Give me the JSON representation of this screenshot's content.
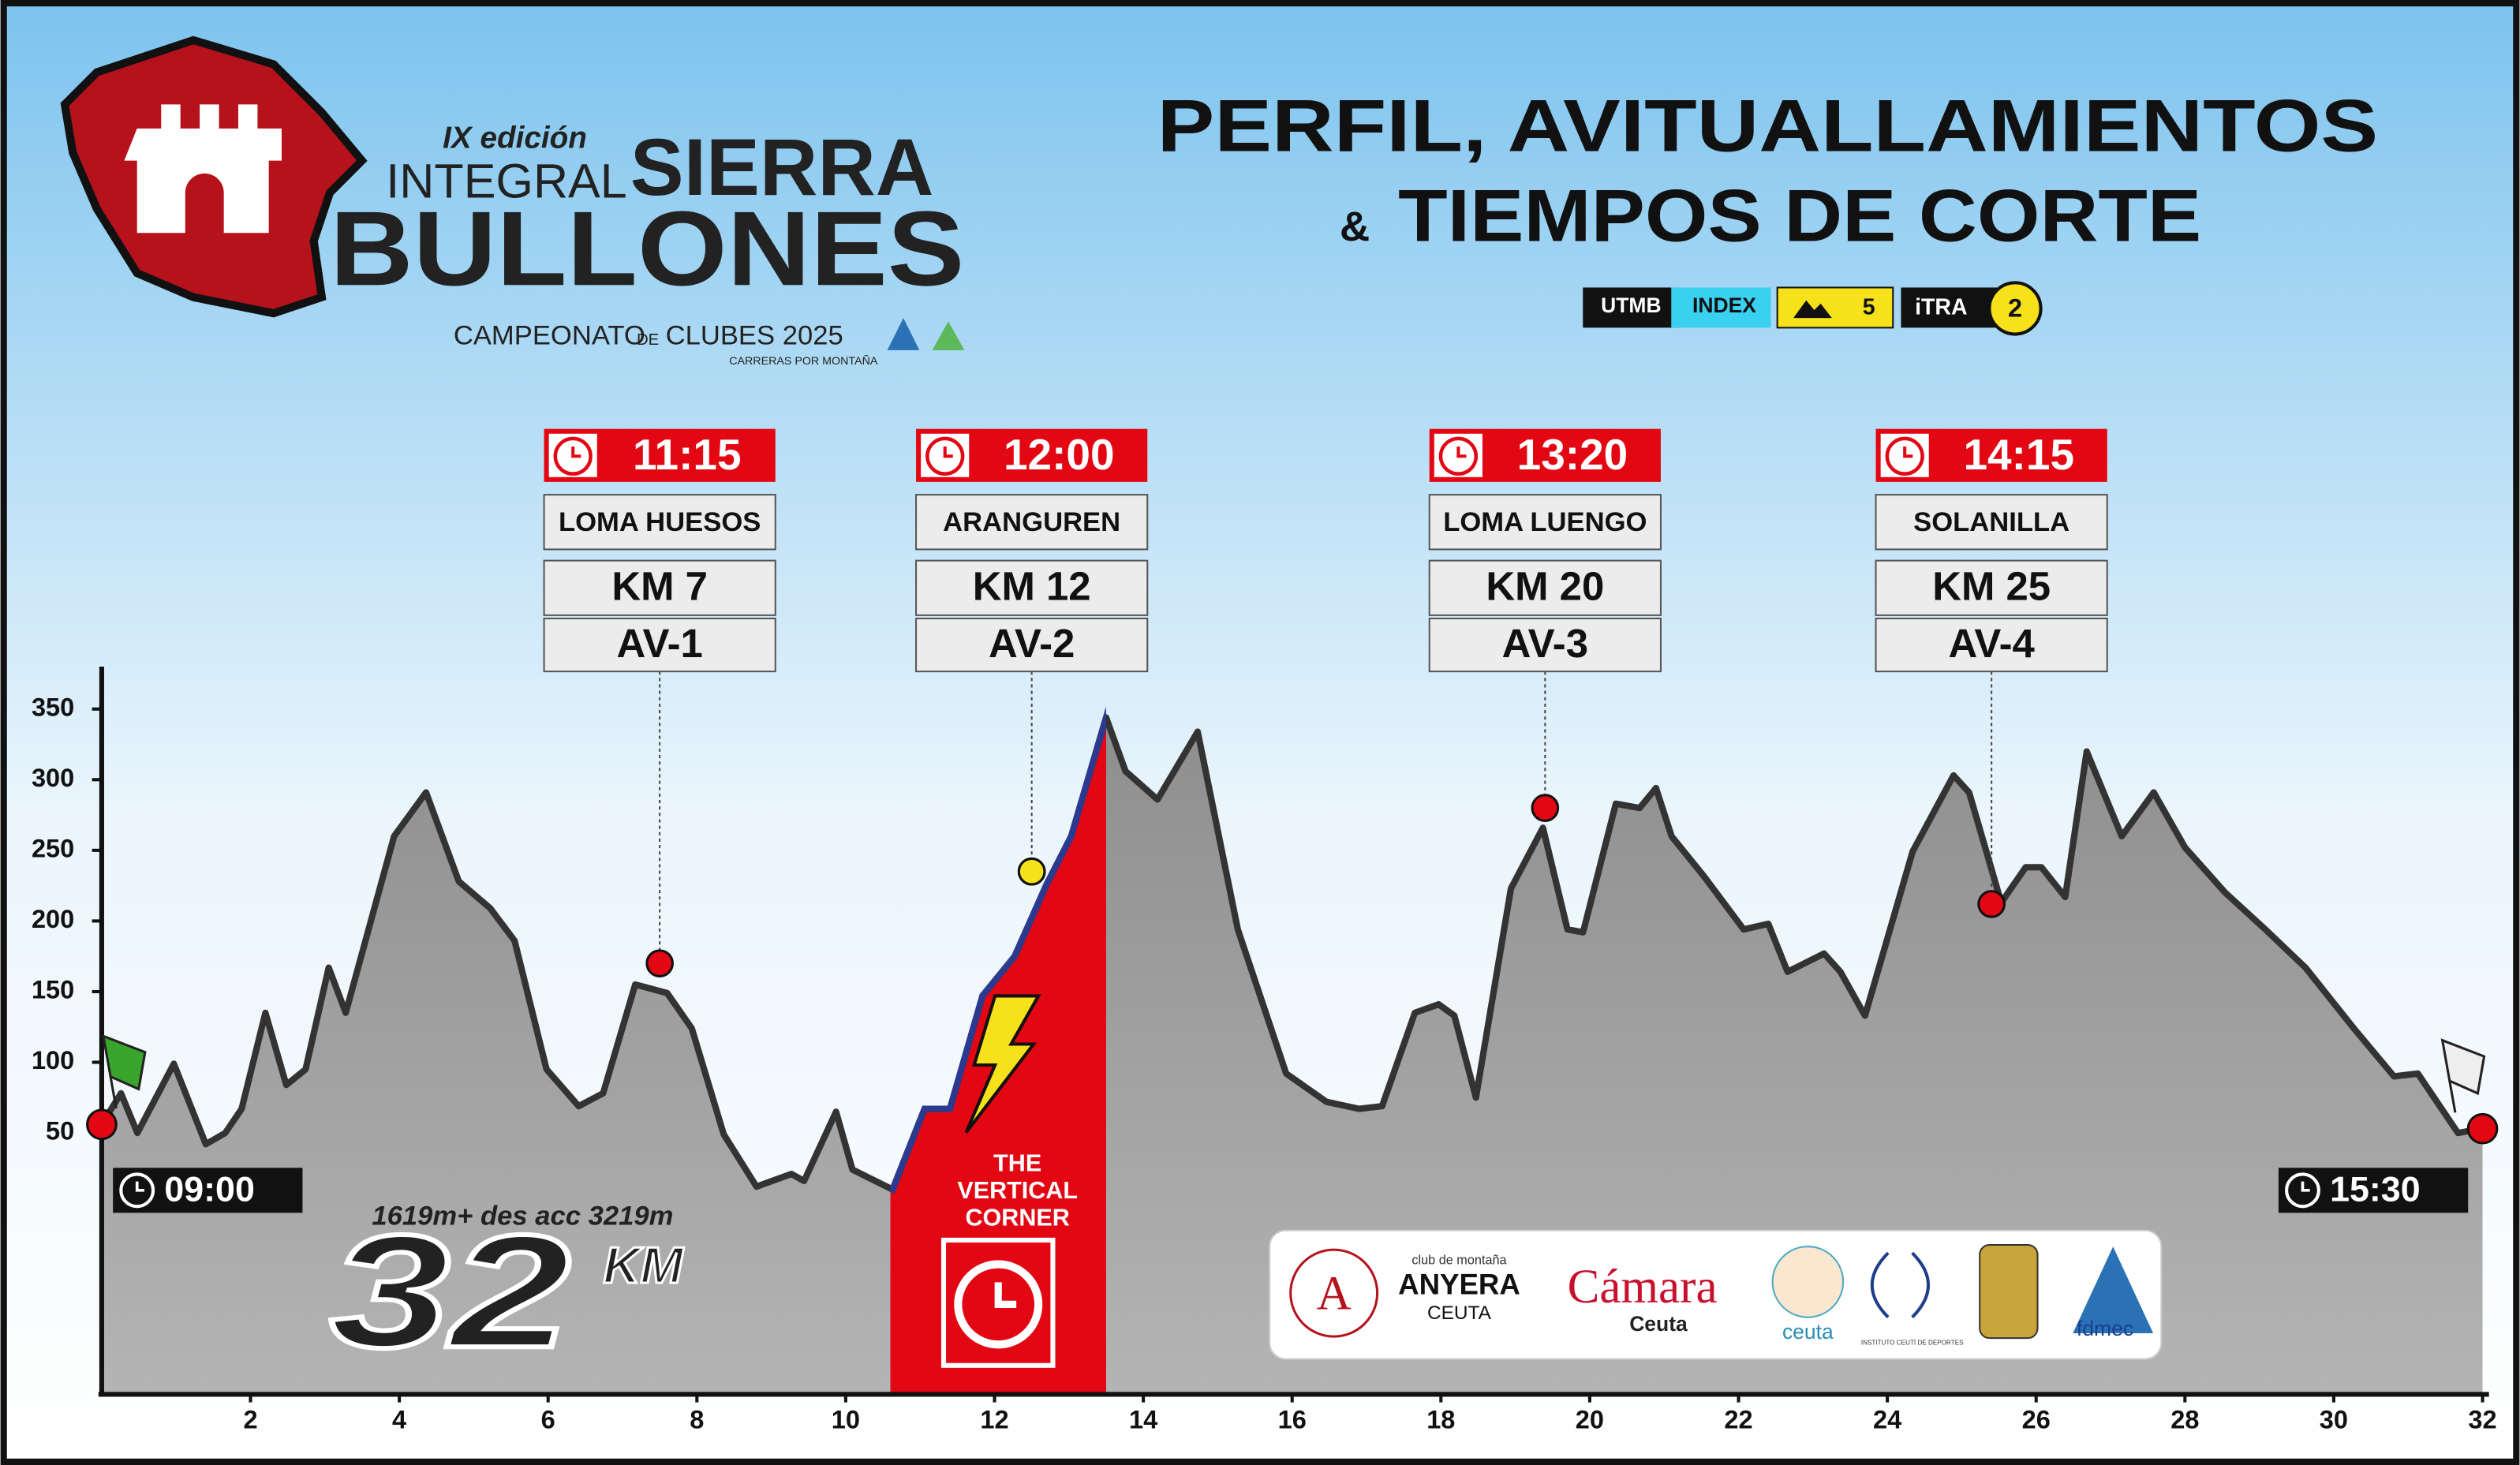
{
  "header": {
    "edition": "IX edición",
    "integral": "INTEGRAL",
    "sierra": "SIERRA",
    "bullones": "BULLONES",
    "campeonato": "CAMPEONATO",
    "de": "DE",
    "clubes": "CLUBES 2025",
    "carreras": "CARRERAS POR MONTAÑA",
    "title_line1": "PERFIL, AVITUALLAMIENTOS",
    "amp": "&",
    "title_line2": "TIEMPOS DE CORTE"
  },
  "badges": {
    "utmb": "UTMB",
    "index": "INDEX",
    "mountain_level": 5,
    "itra": "iTRA",
    "itra_points": 2
  },
  "chart_data": {
    "type": "area",
    "x": [
      0,
      0.26,
      0.48,
      0.97,
      1.4,
      1.66,
      1.88,
      2.2,
      2.48,
      2.74,
      3.05,
      3.28,
      3.93,
      4.36,
      4.8,
      5.22,
      5.55,
      5.98,
      6.41,
      6.74,
      7.17,
      7.6,
      7.93,
      8.36,
      8.8,
      9.27,
      9.44,
      9.87,
      10.09,
      10.63,
      11.06,
      11.4,
      11.84,
      12.27,
      12.7,
      13.03,
      13.5,
      13.76,
      14.19,
      14.73,
      15.27,
      15.92,
      16.46,
      16.9,
      17.21,
      17.65,
      17.97,
      18.18,
      18.47,
      18.94,
      19.37,
      19.7,
      19.91,
      20.35,
      20.67,
      20.89,
      21.1,
      21.53,
      22.07,
      22.4,
      22.66,
      23.15,
      23.37,
      23.7,
      24.34,
      24.89,
      25.1,
      25.53,
      25.86,
      26.07,
      26.39,
      26.68,
      27.15,
      27.58,
      28.0,
      28.54,
      29.08,
      29.62,
      30.27,
      30.81,
      31.13,
      31.67,
      32
    ],
    "values": [
      56,
      78,
      50,
      99,
      42,
      50,
      67,
      135,
      84,
      95,
      167,
      135,
      260,
      291,
      228,
      209,
      186,
      95,
      69,
      78,
      155,
      149,
      124,
      49,
      12,
      21,
      16,
      65,
      24,
      10,
      67,
      67,
      147,
      175,
      226,
      260,
      344,
      306,
      286,
      334,
      194,
      92,
      72,
      67,
      69,
      135,
      141,
      133,
      75,
      223,
      266,
      194,
      192,
      283,
      280,
      294,
      260,
      232,
      194,
      198,
      164,
      177,
      164,
      133,
      249,
      303,
      291,
      213,
      238,
      238,
      217,
      320,
      260,
      291,
      252,
      220,
      194,
      167,
      124,
      90,
      92,
      50,
      53
    ],
    "color": "#9b9b9b",
    "line_color": "#333333",
    "xlim": [
      0,
      32
    ],
    "ylim": [
      -135,
      380
    ],
    "xticks": [
      2,
      4,
      6,
      8,
      10,
      12,
      14,
      16,
      18,
      20,
      22,
      24,
      26,
      28,
      30,
      32
    ],
    "yticks": [
      50,
      100,
      150,
      200,
      250,
      300,
      350
    ],
    "highlight": {
      "from": 10.6,
      "to": 13.5,
      "color": "#e30613",
      "line1": "THE",
      "line2": "VERTICAL",
      "line3": "CORNER"
    },
    "stats": "1619m+ des acc 3219m",
    "distance": "32",
    "unit": "KM",
    "start": {
      "time": "09:00",
      "x": 0,
      "elevation": 56
    },
    "finish": {
      "time": "15:30",
      "x": 32,
      "elevation": 53
    },
    "marker": {
      "x": 12.5,
      "elevation": 235,
      "color": "#f5e21b"
    },
    "aid_stations": [
      {
        "time": "11:15",
        "name": "LOMA HUESOS",
        "km": "KM 7",
        "av": "AV-1",
        "x": 7.5,
        "elevation": 170
      },
      {
        "time": "12:00",
        "name": "ARANGUREN",
        "km": "KM 12",
        "av": "AV-2",
        "x": 12.5,
        "elevation": 235
      },
      {
        "time": "13:20",
        "name": "LOMA LUENGO",
        "km": "KM 20",
        "av": "AV-3",
        "x": 19.4,
        "elevation": 280
      },
      {
        "time": "14:15",
        "name": "SOLANILLA",
        "km": "KM 25",
        "av": "AV-4",
        "x": 25.4,
        "elevation": 212
      }
    ]
  },
  "sponsors": {
    "club": "club de montaña",
    "anyera": "ANYERA",
    "anyera_city": "CEUTA",
    "camara": "Cámara",
    "camara_city": "Ceuta",
    "ceuta": "ceuta",
    "icd": "INSTITUTO CEUTÍ DE DEPORTES",
    "fdmec": "fdmec"
  }
}
